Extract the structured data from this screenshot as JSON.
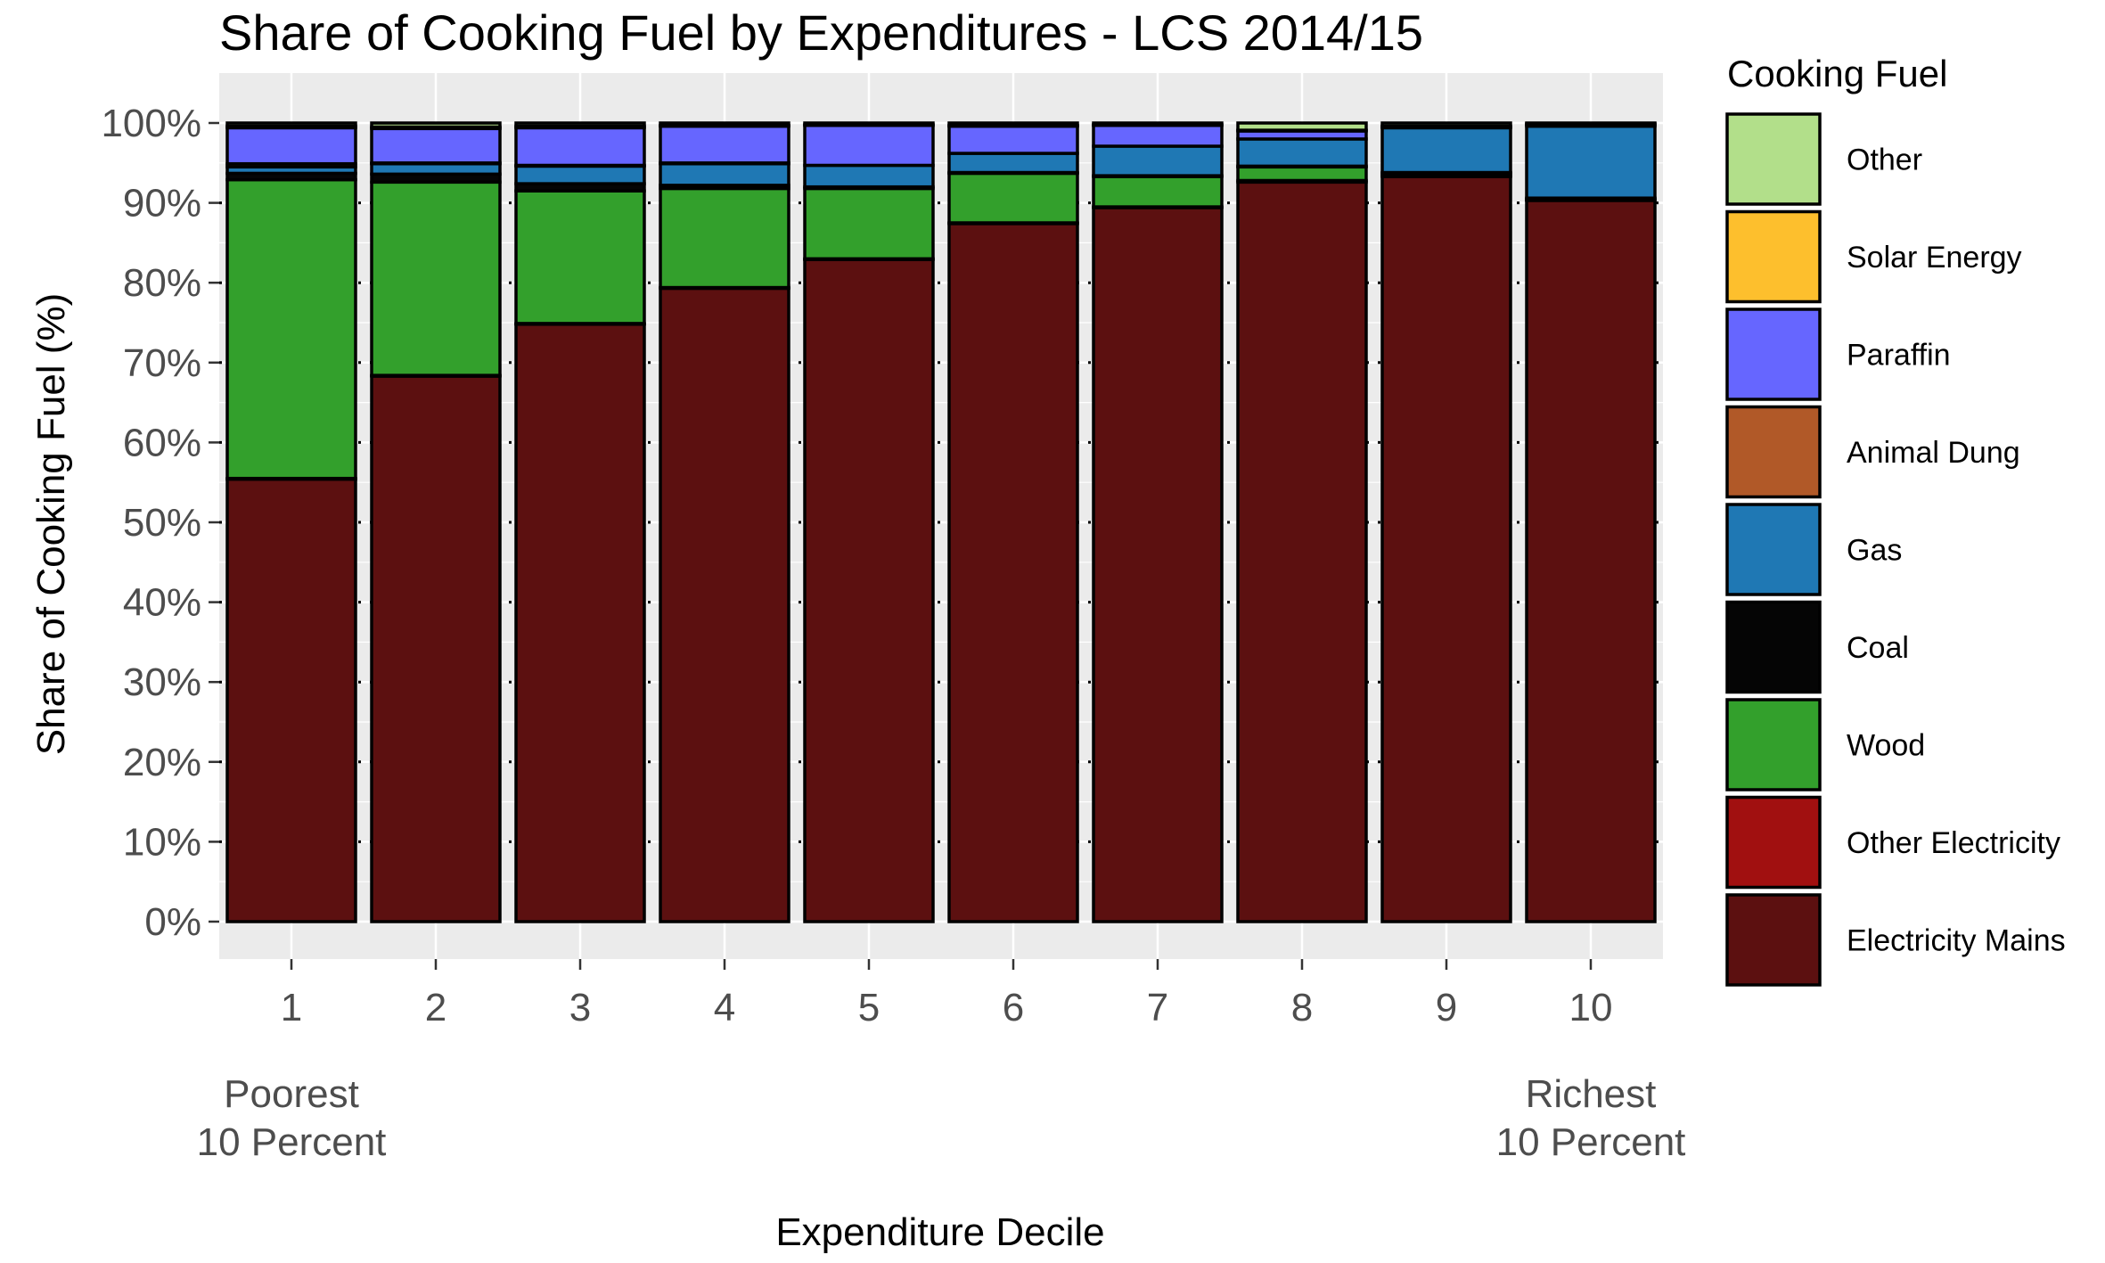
{
  "chart_data": {
    "type": "bar",
    "stacked": true,
    "title": "Share of Cooking Fuel by Expenditures - LCS 2014/15",
    "xlabel": "Expenditure Decile",
    "ylabel": "Share of Cooking Fuel (%)",
    "ylim": [
      0,
      100
    ],
    "y_ticks": [
      "0%",
      "10%",
      "20%",
      "30%",
      "40%",
      "50%",
      "60%",
      "70%",
      "80%",
      "90%",
      "100%"
    ],
    "categories": [
      "1",
      "2",
      "3",
      "4",
      "5",
      "6",
      "7",
      "8",
      "9",
      "10"
    ],
    "x_notes": [
      {
        "category": "1",
        "lines": [
          "Poorest",
          "10 Percent"
        ]
      },
      {
        "category": "10",
        "lines": [
          "Richest",
          "10 Percent"
        ]
      }
    ],
    "legend_title": "Cooking Fuel",
    "legend_position": "right",
    "background": "#ebebeb",
    "series": [
      {
        "name": "Electricity Mains",
        "color": "#5c1010",
        "values": [
          55.4,
          68.3,
          74.8,
          79.3,
          82.9,
          87.4,
          89.4,
          92.6,
          93.3,
          90.3
        ]
      },
      {
        "name": "Other Electricity",
        "color": "#a11010",
        "values": [
          0.1,
          0.1,
          0.1,
          0.1,
          0.1,
          0.1,
          0.1,
          0.2,
          0.1,
          0.1
        ]
      },
      {
        "name": "Wood",
        "color": "#33a02c",
        "values": [
          37.4,
          24.2,
          16.6,
          12.4,
          8.8,
          6.2,
          3.8,
          1.7,
          0.3,
          0.1
        ]
      },
      {
        "name": "Coal",
        "color": "#050505",
        "values": [
          0.8,
          1.0,
          0.9,
          0.4,
          0.2,
          0.1,
          0.1,
          0.1,
          0.1,
          0.1
        ]
      },
      {
        "name": "Gas",
        "color": "#1f78b4",
        "values": [
          0.8,
          1.3,
          2.2,
          2.7,
          2.7,
          2.4,
          3.7,
          3.4,
          5.6,
          9.0
        ]
      },
      {
        "name": "Animal Dung",
        "color": "#b15928",
        "values": [
          0.4,
          0.1,
          0.1,
          0.1,
          0.0,
          0.0,
          0.0,
          0.0,
          0.0,
          0.0
        ]
      },
      {
        "name": "Paraffin",
        "color": "#6666ff",
        "values": [
          4.5,
          4.3,
          4.7,
          4.6,
          5.0,
          3.4,
          2.6,
          1.0,
          0.1,
          0.2
        ]
      },
      {
        "name": "Solar Energy",
        "color": "#fdbf2d",
        "values": [
          0.2,
          0.2,
          0.2,
          0.1,
          0.1,
          0.1,
          0.1,
          0.1,
          0.1,
          0.1
        ]
      },
      {
        "name": "Other",
        "color": "#b2df8a",
        "values": [
          0.4,
          0.5,
          0.4,
          0.3,
          0.2,
          0.3,
          0.2,
          0.9,
          0.4,
          0.1
        ]
      }
    ],
    "legend_order": [
      "Other",
      "Solar Energy",
      "Paraffin",
      "Animal Dung",
      "Gas",
      "Coal",
      "Wood",
      "Other Electricity",
      "Electricity Mains"
    ]
  }
}
